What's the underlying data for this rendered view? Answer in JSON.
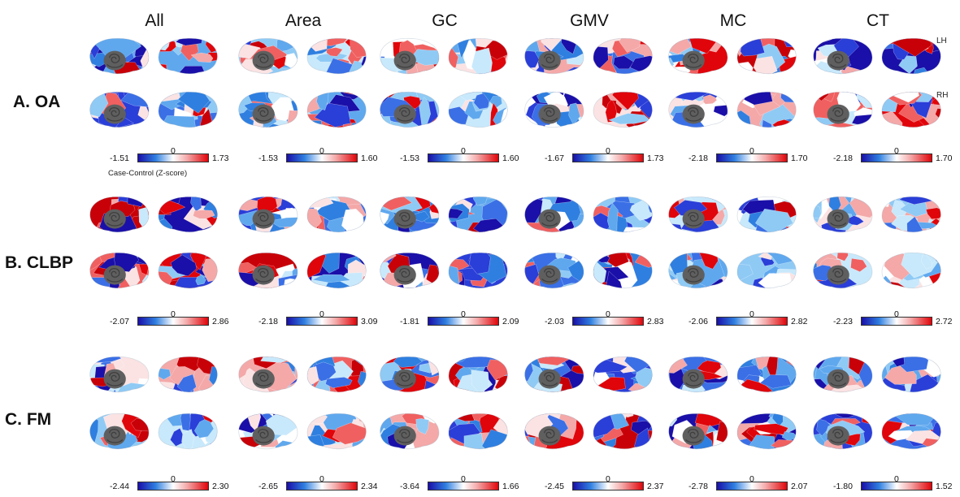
{
  "columns": [
    {
      "label": "All",
      "scales": [
        {
          "min": "-1.51",
          "zero": "0",
          "max": "1.73"
        },
        {
          "min": "-2.07",
          "zero": "0",
          "max": "2.86"
        },
        {
          "min": "-2.44",
          "zero": "0",
          "max": "2.30"
        }
      ]
    },
    {
      "label": "Area",
      "scales": [
        {
          "min": "-1.53",
          "zero": "0",
          "max": "1.60"
        },
        {
          "min": "-2.18",
          "zero": "0",
          "max": "3.09"
        },
        {
          "min": "-2.65",
          "zero": "0",
          "max": "2.34"
        }
      ]
    },
    {
      "label": "GC",
      "scales": [
        {
          "min": "-1.53",
          "zero": "0",
          "max": "1.60"
        },
        {
          "min": "-1.81",
          "zero": "0",
          "max": "2.09"
        },
        {
          "min": "-3.64",
          "zero": "0",
          "max": "1.66"
        }
      ]
    },
    {
      "label": "GMV",
      "scales": [
        {
          "min": "-1.67",
          "zero": "0",
          "max": "1.73"
        },
        {
          "min": "-2.03",
          "zero": "0",
          "max": "2.83"
        },
        {
          "min": "-2.45",
          "zero": "0",
          "max": "2.37"
        }
      ]
    },
    {
      "label": "MC",
      "scales": [
        {
          "min": "-2.18",
          "zero": "0",
          "max": "1.70"
        },
        {
          "min": "-2.06",
          "zero": "0",
          "max": "2.82"
        },
        {
          "min": "-2.78",
          "zero": "0",
          "max": "2.07"
        }
      ]
    },
    {
      "label": "CT",
      "scales": [
        {
          "min": "-2.18",
          "zero": "0",
          "max": "1.70"
        },
        {
          "min": "-2.23",
          "zero": "0",
          "max": "2.72"
        },
        {
          "min": "-1.80",
          "zero": "0",
          "max": "1.52"
        }
      ]
    }
  ],
  "rows": [
    {
      "label": "A. OA"
    },
    {
      "label": "B. CLBP"
    },
    {
      "label": "C. FM"
    }
  ],
  "hemispheres": {
    "left": "LH",
    "right": "RH"
  },
  "colorbar_caption": "Case-Control (Z-score)",
  "colors": {
    "negative_max": "#1a0fa8",
    "negative_mid": "#2f7fe0",
    "neutral": "#ffffff",
    "positive_mid": "#f4a8a8",
    "positive_max": "#e0050a",
    "cerebellum": "#5f5f5f"
  }
}
